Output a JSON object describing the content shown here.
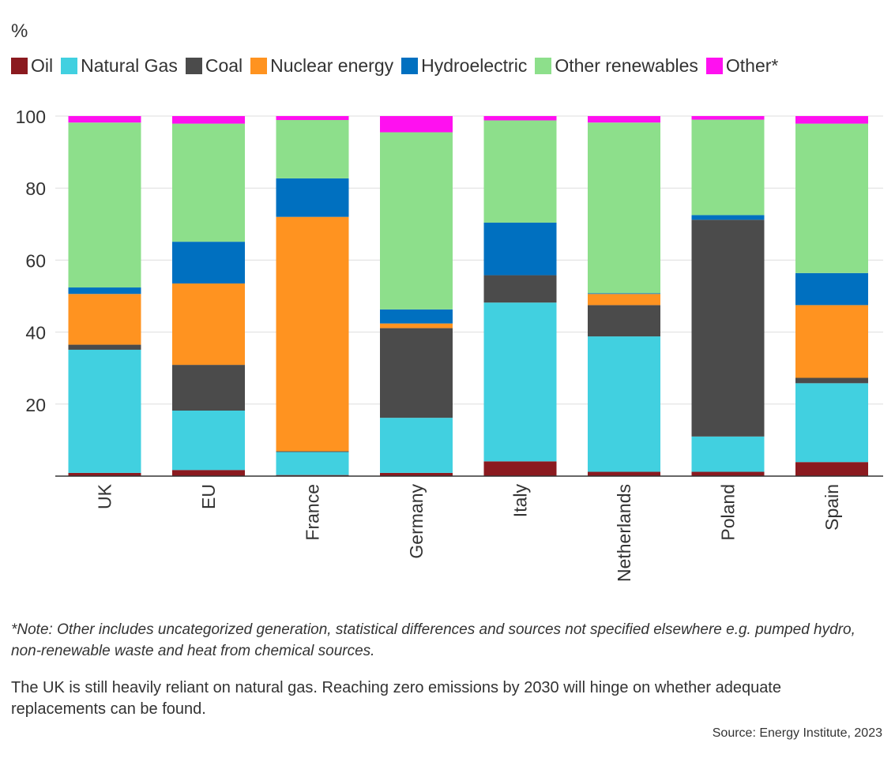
{
  "unit_label": "%",
  "note": "*Note: Other includes uncategorized generation, statistical differences and sources not specified elsewhere e.g. pumped hydro, non-renewable waste and heat from chemical sources.",
  "caption": "The UK is still heavily reliant on natural gas. Reaching zero emissions by 2030 will hinge on whether adequate replacements can be found.",
  "source": "Source: Energy Institute, 2023",
  "chart_data": {
    "type": "bar",
    "stacked": true,
    "orientation": "vertical",
    "ylim": [
      0,
      100
    ],
    "yticks": [
      20,
      40,
      60,
      80,
      100
    ],
    "grid": true,
    "legend_position": "top-left",
    "categories": [
      "UK",
      "EU",
      "France",
      "Germany",
      "Italy",
      "Netherlands",
      "Poland",
      "Spain"
    ],
    "series": [
      {
        "name": "Oil",
        "color": "#8b1a1f",
        "values": [
          0.9,
          1.7,
          0.3,
          0.9,
          4.1,
          1.2,
          1.2,
          3.9
        ]
      },
      {
        "name": "Natural Gas",
        "color": "#41d0e0",
        "values": [
          34.2,
          16.5,
          6.4,
          15.3,
          44.1,
          37.6,
          9.8,
          21.9
        ]
      },
      {
        "name": "Coal",
        "color": "#4b4b4b",
        "values": [
          1.4,
          12.7,
          0.2,
          24.9,
          7.6,
          8.7,
          60.2,
          1.5
        ]
      },
      {
        "name": "Nuclear energy",
        "color": "#ff9320",
        "values": [
          14.1,
          22.6,
          65.1,
          1.3,
          0.0,
          3.1,
          0.0,
          20.2
        ]
      },
      {
        "name": "Hydroelectric",
        "color": "#0070c0",
        "values": [
          1.8,
          11.6,
          10.7,
          3.9,
          14.6,
          0.2,
          1.3,
          8.9
        ]
      },
      {
        "name": "Other renewables",
        "color": "#8ddf8b",
        "values": [
          45.8,
          32.8,
          16.2,
          49.2,
          28.4,
          47.4,
          26.5,
          41.5
        ]
      },
      {
        "name": "Other*",
        "color": "#ff10f0",
        "values": [
          1.8,
          2.1,
          1.1,
          4.5,
          1.2,
          1.8,
          1.0,
          2.1
        ]
      }
    ]
  }
}
